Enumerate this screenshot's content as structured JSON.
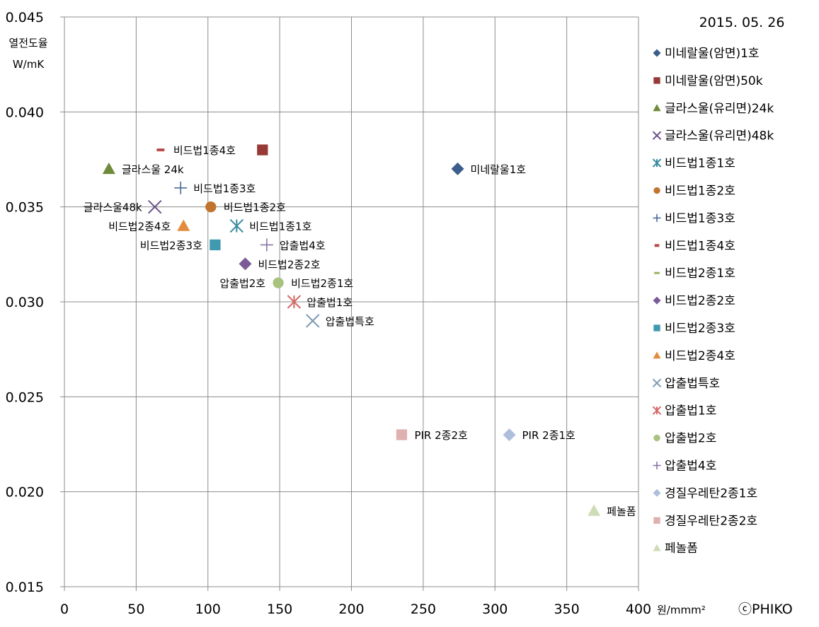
{
  "chart_data": {
    "type": "scatter",
    "date": "2015. 05. 26",
    "copyright": "ⓒPHIKO",
    "ylabel_line1": "열전도율",
    "ylabel_line2": "W/mK",
    "xunit": "원/mmm²",
    "xlim": [
      0,
      400
    ],
    "ylim": [
      0.015,
      0.045
    ],
    "xticks": [
      "0",
      "50",
      "100",
      "150",
      "200",
      "250",
      "300",
      "350",
      "400"
    ],
    "yticks": [
      "0.045",
      "0.040",
      "0.035",
      "0.030",
      "0.025",
      "0.020",
      "0.015"
    ],
    "grid": true,
    "legend_position": "right",
    "series": [
      {
        "name": "미네랄울(암면)1호",
        "marker": "diamond",
        "color": "#3b5e8c",
        "x": 274,
        "y": 0.037,
        "label": "미네랄울1호",
        "label_side": "right"
      },
      {
        "name": "미네랄울(암면)50k",
        "marker": "square",
        "color": "#963a36",
        "x": 138,
        "y": 0.038,
        "label": "",
        "label_side": "right"
      },
      {
        "name": "글라스울(유리면)24k",
        "marker": "triangle",
        "color": "#6f8a3a",
        "x": 31,
        "y": 0.037,
        "label": "글라스울 24k",
        "label_side": "right"
      },
      {
        "name": "글라스울(유리면)48k",
        "marker": "x",
        "color": "#6b5288",
        "x": 63,
        "y": 0.035,
        "label": "글라스울48k",
        "label_side": "left"
      },
      {
        "name": "비드법1종1호",
        "marker": "asterisk",
        "color": "#3a8a9e",
        "x": 120,
        "y": 0.034,
        "label": "비드법1종1호",
        "label_side": "right"
      },
      {
        "name": "비드법1종2호",
        "marker": "circle",
        "color": "#c0742d",
        "x": 102,
        "y": 0.035,
        "label": "비드법1종2호",
        "label_side": "right"
      },
      {
        "name": "비드법1종3호",
        "marker": "plus",
        "color": "#4a6a99",
        "x": 81,
        "y": 0.036,
        "label": "비드법1종3호",
        "label_side": "right"
      },
      {
        "name": "비드법1종4호",
        "marker": "dash",
        "color": "#b84a48",
        "x": 67,
        "y": 0.038,
        "label": "비드법1종4호",
        "label_side": "right"
      },
      {
        "name": "비드법2종1호",
        "marker": "line",
        "color": "#98b35a",
        "x": 149,
        "y": 0.031,
        "label": "비드법2종1호",
        "label_side": "right"
      },
      {
        "name": "비드법2종2호",
        "marker": "diamond",
        "color": "#7a5a97",
        "x": 126,
        "y": 0.032,
        "label": "비드법2종2호",
        "label_side": "right"
      },
      {
        "name": "비드법2종3호",
        "marker": "square",
        "color": "#3f9ab0",
        "x": 105,
        "y": 0.033,
        "label": "비드법2종3호",
        "label_side": "left"
      },
      {
        "name": "비드법2종4호",
        "marker": "triangle",
        "color": "#e38c3d",
        "x": 83,
        "y": 0.034,
        "label": "비드법2종4호",
        "label_side": "left"
      },
      {
        "name": "압출법특호",
        "marker": "x",
        "color": "#7f9ab5",
        "x": 173,
        "y": 0.029,
        "label": "압출법특호",
        "label_side": "right"
      },
      {
        "name": "압출법1호",
        "marker": "asterisk",
        "color": "#d46a67",
        "x": 160,
        "y": 0.03,
        "label": "압출법1호",
        "label_side": "right"
      },
      {
        "name": "압출법2호",
        "marker": "circle",
        "color": "#a9c27f",
        "x": 149,
        "y": 0.031,
        "label": "압출법2호",
        "label_side": "left"
      },
      {
        "name": "압출법4호",
        "marker": "plus",
        "color": "#8a74a8",
        "x": 141,
        "y": 0.033,
        "label": "압출법4호",
        "label_side": "right"
      },
      {
        "name": "경질우레탄2종1호",
        "marker": "diamond",
        "color": "#aebfdc",
        "x": 310,
        "y": 0.023,
        "label": "PIR 2종1호",
        "label_side": "right"
      },
      {
        "name": "경질우레탄2종2호",
        "marker": "square",
        "color": "#dfb0b0",
        "x": 235,
        "y": 0.023,
        "label": "PIR 2종2호",
        "label_side": "right"
      },
      {
        "name": "페놀폼",
        "marker": "triangle",
        "color": "#cfdcb8",
        "x": 369,
        "y": 0.019,
        "label": "페놀폼",
        "label_side": "right"
      }
    ]
  }
}
